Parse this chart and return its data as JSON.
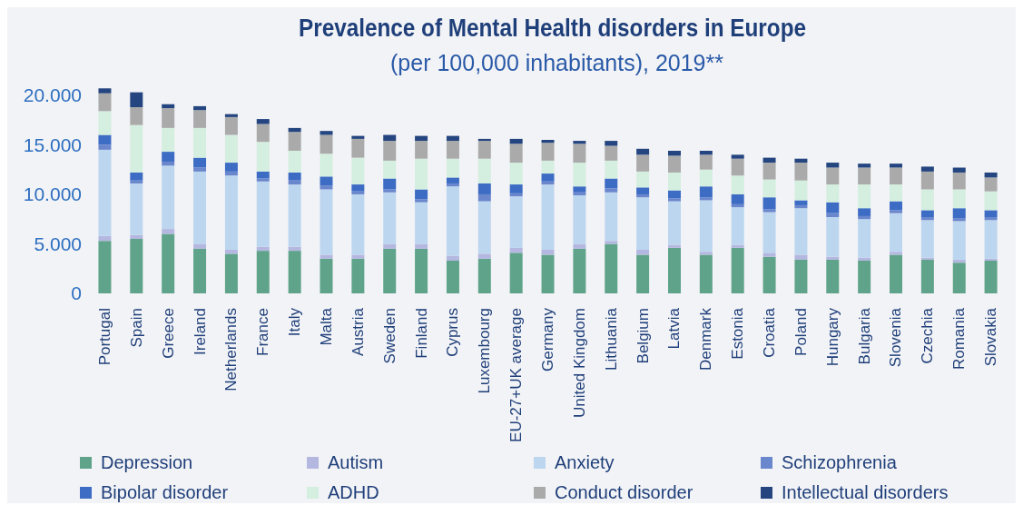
{
  "chart_data": {
    "type": "bar",
    "title": "Prevalence of Mental Health disorders in Europe",
    "subtitle": "(per 100,000 inhabitants), 2019**",
    "categories": [
      "Portugal",
      "Spain",
      "Greece",
      "Ireland",
      "Netherlands",
      "France",
      "Italy",
      "Malta",
      "Austria",
      "Sweden",
      "Finland",
      "Cyprus",
      "Luxembourg",
      "EU-27+UK average",
      "Germany",
      "United Kingdom",
      "Lithuania",
      "Belgium",
      "Latvia",
      "Denmark",
      "Estonia",
      "Croatia",
      "Poland",
      "Hungary",
      "Bulgaria",
      "Slovenia",
      "Czechia",
      "Romania",
      "Slovakia"
    ],
    "stacked": true,
    "series": [
      {
        "name": "Depression",
        "color": "#5fa38a",
        "values": [
          5300,
          5500,
          6000,
          4500,
          4000,
          4300,
          4300,
          3500,
          3500,
          4500,
          4500,
          3300,
          3500,
          4100,
          3900,
          4500,
          5000,
          3900,
          4600,
          3900,
          4600,
          3700,
          3400,
          3400,
          3300,
          3900,
          3400,
          3100,
          3300
        ]
      },
      {
        "name": "Autism",
        "color": "#b4b8e0",
        "values": [
          500,
          400,
          500,
          500,
          400,
          400,
          400,
          400,
          400,
          500,
          500,
          500,
          500,
          500,
          500,
          500,
          300,
          500,
          300,
          300,
          300,
          400,
          500,
          300,
          300,
          300,
          200,
          300,
          200
        ]
      },
      {
        "name": "Anxiety",
        "color": "#bcd6ef",
        "values": [
          8700,
          5200,
          6400,
          7300,
          7500,
          6600,
          6300,
          6600,
          6100,
          5200,
          4200,
          7000,
          5300,
          5200,
          6600,
          4900,
          4900,
          5300,
          4400,
          5200,
          3800,
          4100,
          4700,
          4000,
          3900,
          3900,
          3800,
          3900,
          3900
        ]
      },
      {
        "name": "Schizophrenia",
        "color": "#6a86cc",
        "values": [
          500,
          300,
          400,
          400,
          400,
          300,
          400,
          400,
          300,
          300,
          300,
          300,
          700,
          300,
          300,
          300,
          400,
          300,
          300,
          300,
          300,
          300,
          300,
          400,
          300,
          300,
          300,
          300,
          300
        ]
      },
      {
        "name": "Bipolar disorder",
        "color": "#3d6cc4",
        "values": [
          1000,
          800,
          1000,
          1000,
          900,
          700,
          800,
          900,
          700,
          1100,
          1000,
          600,
          1100,
          900,
          800,
          600,
          1000,
          700,
          800,
          1100,
          1000,
          1200,
          500,
          1100,
          800,
          900,
          700,
          1000,
          700
        ]
      },
      {
        "name": "ADHD",
        "color": "#d4eedf",
        "values": [
          2400,
          4800,
          2400,
          3000,
          2800,
          3000,
          2200,
          2300,
          2700,
          1800,
          3100,
          1900,
          2500,
          2200,
          1300,
          2400,
          1800,
          1600,
          1800,
          1700,
          1900,
          1800,
          2000,
          1800,
          2400,
          1700,
          2100,
          1900,
          1900
        ]
      },
      {
        "name": "Conduct disorder",
        "color": "#aaaaaa",
        "values": [
          1800,
          1800,
          2000,
          1800,
          1800,
          1800,
          1900,
          1900,
          1900,
          2000,
          1800,
          1800,
          1800,
          1900,
          1800,
          1900,
          1500,
          1700,
          1700,
          1500,
          1700,
          1700,
          1800,
          1700,
          1700,
          1700,
          1800,
          1700,
          1400
        ]
      },
      {
        "name": "Intellectual disorders",
        "color": "#24457f",
        "values": [
          500,
          1500,
          400,
          400,
          300,
          500,
          400,
          400,
          300,
          600,
          500,
          500,
          200,
          500,
          300,
          300,
          500,
          600,
          500,
          400,
          400,
          500,
          400,
          500,
          400,
          400,
          500,
          500,
          500
        ]
      }
    ],
    "ylim": [
      0,
      21000
    ],
    "yticks": [
      0,
      {
        "value": 5000,
        "label": "5.000"
      },
      {
        "value": 10000,
        "label": "10.000"
      },
      {
        "value": 15000,
        "label": "15.000"
      },
      {
        "value": 20000,
        "label": "20.000"
      }
    ],
    "legend": "bottom"
  }
}
